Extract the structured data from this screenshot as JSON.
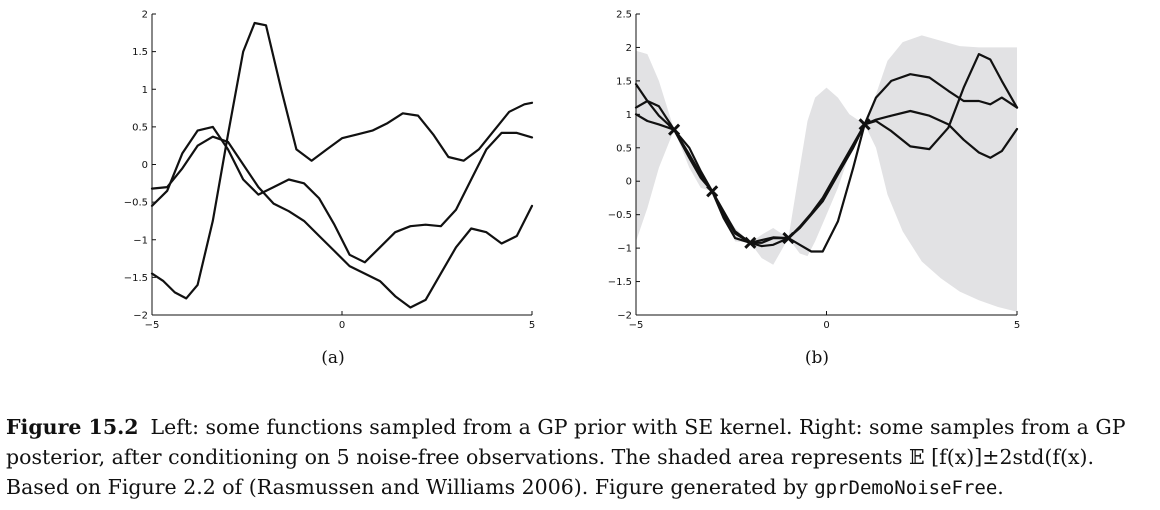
{
  "chart_data": [
    {
      "type": "line",
      "panel": "(a)",
      "xlim": [
        -5,
        5
      ],
      "ylim": [
        -2,
        2
      ],
      "x_ticks": [
        -5,
        0,
        5
      ],
      "y_ticks": [
        -2,
        -1.5,
        -1,
        -0.5,
        0,
        0.5,
        1,
        1.5,
        2
      ],
      "x_tick_labels": [
        "−5",
        "0",
        "5"
      ],
      "y_tick_labels": [
        "−2",
        "−1.5",
        "−1",
        "−0.5",
        "0",
        "0.5",
        "1",
        "1.5",
        "2"
      ],
      "grid": false,
      "series": [
        {
          "x": [
            -5,
            -4.7,
            -4.4,
            -4.1,
            -3.8,
            -3.4,
            -3,
            -2.6,
            -2.3,
            -2,
            -1.6,
            -1.2,
            -0.8,
            -0.4,
            0,
            0.4,
            0.8,
            1.2,
            1.6,
            2,
            2.4,
            2.8,
            3.2,
            3.6,
            4,
            4.4,
            4.8,
            5
          ],
          "y": [
            -1.45,
            -1.55,
            -1.7,
            -1.78,
            -1.6,
            -0.75,
            0.4,
            1.5,
            1.88,
            1.85,
            1.0,
            0.2,
            0.05,
            0.2,
            0.35,
            0.4,
            0.45,
            0.55,
            0.68,
            0.65,
            0.4,
            0.1,
            0.05,
            0.2,
            0.45,
            0.7,
            0.8,
            0.82
          ]
        },
        {
          "x": [
            -5,
            -4.6,
            -4.2,
            -3.8,
            -3.4,
            -3,
            -2.6,
            -2.2,
            -1.8,
            -1.4,
            -1,
            -0.6,
            -0.2,
            0.2,
            0.6,
            1,
            1.4,
            1.8,
            2.2,
            2.6,
            3,
            3.4,
            3.8,
            4.2,
            4.6,
            5
          ],
          "y": [
            -0.55,
            -0.35,
            0.15,
            0.45,
            0.5,
            0.2,
            -0.2,
            -0.4,
            -0.3,
            -0.2,
            -0.25,
            -0.45,
            -0.8,
            -1.2,
            -1.3,
            -1.1,
            -0.9,
            -0.82,
            -0.8,
            -0.82,
            -0.6,
            -0.2,
            0.2,
            0.42,
            0.42,
            0.36
          ]
        },
        {
          "x": [
            -5,
            -4.6,
            -4.2,
            -3.8,
            -3.4,
            -3,
            -2.6,
            -2.2,
            -1.8,
            -1.4,
            -1,
            -0.6,
            -0.2,
            0.2,
            0.6,
            1,
            1.4,
            1.8,
            2.2,
            2.6,
            3,
            3.4,
            3.8,
            4.2,
            4.6,
            5
          ],
          "y": [
            -0.32,
            -0.3,
            -0.05,
            0.25,
            0.37,
            0.3,
            0.0,
            -0.3,
            -0.52,
            -0.62,
            -0.75,
            -0.95,
            -1.15,
            -1.35,
            -1.45,
            -1.55,
            -1.75,
            -1.9,
            -1.8,
            -1.45,
            -1.1,
            -0.85,
            -0.9,
            -1.05,
            -0.95,
            -0.55
          ]
        }
      ]
    },
    {
      "type": "line",
      "panel": "(b)",
      "xlim": [
        -5,
        5
      ],
      "ylim": [
        -2,
        2.5
      ],
      "x_ticks": [
        -5,
        0,
        5
      ],
      "y_ticks": [
        -2,
        -1.5,
        -1,
        -0.5,
        0,
        0.5,
        1,
        1.5,
        2,
        2.5
      ],
      "x_tick_labels": [
        "−5",
        "0",
        "5"
      ],
      "y_tick_labels": [
        "−2",
        "−1.5",
        "−1",
        "−0.5",
        "0",
        "0.5",
        "1",
        "1.5",
        "2",
        "2.5"
      ],
      "grid": false,
      "observations": {
        "x": [
          -4,
          -3,
          -2,
          -1,
          1
        ],
        "y": [
          0.77,
          -0.15,
          -0.92,
          -0.85,
          0.85
        ]
      },
      "band": {
        "x": [
          -5,
          -4.7,
          -4.4,
          -4,
          -3.6,
          -3.3,
          -3,
          -2.7,
          -2.4,
          -2,
          -1.7,
          -1.4,
          -1,
          -0.7,
          -0.5,
          -0.3,
          0,
          0.3,
          0.6,
          1,
          1.3,
          1.6,
          2,
          2.5,
          3,
          3.5,
          4,
          4.5,
          5
        ],
        "upper": [
          1.95,
          1.9,
          1.5,
          0.77,
          0.45,
          0.15,
          -0.15,
          -0.45,
          -0.7,
          -0.92,
          -0.8,
          -0.7,
          -0.85,
          0.2,
          0.9,
          1.25,
          1.4,
          1.25,
          1.0,
          0.85,
          1.3,
          1.8,
          2.08,
          2.18,
          2.1,
          2.02,
          2.0,
          2.0,
          2.0
        ],
        "lower": [
          -0.9,
          -0.4,
          0.2,
          0.77,
          0.2,
          -0.1,
          -0.15,
          -0.45,
          -0.9,
          -0.92,
          -1.15,
          -1.25,
          -0.85,
          -1.08,
          -1.12,
          -0.9,
          -0.5,
          -0.1,
          0.4,
          0.85,
          0.5,
          -0.2,
          -0.75,
          -1.2,
          -1.45,
          -1.65,
          -1.78,
          -1.88,
          -1.95
        ]
      },
      "series": [
        {
          "x": [
            -5,
            -4.7,
            -4.4,
            -4,
            -3.6,
            -3.3,
            -3,
            -2.7,
            -2.4,
            -2,
            -1.7,
            -1.4,
            -1,
            -0.7,
            -0.4,
            -0.1,
            0.3,
            0.7,
            1,
            1.3,
            1.7,
            2.2,
            2.7,
            3.2,
            3.6,
            4,
            4.3,
            4.6,
            5
          ],
          "y": [
            1.45,
            1.2,
            0.98,
            0.77,
            0.4,
            0.1,
            -0.15,
            -0.5,
            -0.78,
            -0.92,
            -0.97,
            -0.95,
            -0.85,
            -0.68,
            -0.48,
            -0.25,
            0.15,
            0.55,
            0.85,
            1.25,
            1.5,
            1.6,
            1.55,
            1.35,
            1.2,
            1.2,
            1.15,
            1.25,
            1.1
          ]
        },
        {
          "x": [
            -5,
            -4.7,
            -4.4,
            -4,
            -3.6,
            -3.3,
            -3,
            -2.7,
            -2.4,
            -2,
            -1.7,
            -1.4,
            -1,
            -0.7,
            -0.4,
            -0.1,
            0.3,
            0.7,
            1,
            1.3,
            1.7,
            2.2,
            2.7,
            3.2,
            3.6,
            4,
            4.3,
            4.6,
            5
          ],
          "y": [
            1.1,
            1.2,
            1.12,
            0.77,
            0.35,
            0.05,
            -0.15,
            -0.45,
            -0.75,
            -0.92,
            -0.92,
            -0.85,
            -0.85,
            -0.95,
            -1.05,
            -1.05,
            -0.6,
            0.2,
            0.85,
            0.9,
            0.75,
            0.52,
            0.48,
            0.8,
            1.4,
            1.9,
            1.82,
            1.5,
            1.1
          ]
        },
        {
          "x": [
            -5,
            -4.7,
            -4.4,
            -4,
            -3.6,
            -3.3,
            -3,
            -2.7,
            -2.4,
            -2,
            -1.7,
            -1.4,
            -1,
            -0.7,
            -0.4,
            -0.1,
            0.3,
            0.7,
            1,
            1.3,
            1.7,
            2.2,
            2.7,
            3.2,
            3.6,
            4,
            4.3,
            4.6,
            5
          ],
          "y": [
            1.0,
            0.9,
            0.85,
            0.77,
            0.5,
            0.15,
            -0.15,
            -0.55,
            -0.85,
            -0.92,
            -0.88,
            -0.84,
            -0.85,
            -0.7,
            -0.5,
            -0.3,
            0.1,
            0.5,
            0.85,
            0.92,
            0.98,
            1.05,
            0.98,
            0.85,
            0.62,
            0.43,
            0.35,
            0.45,
            0.78
          ]
        }
      ]
    }
  ],
  "caption": {
    "label": "Figure 15.2",
    "line1": "Left: some functions sampled from a GP prior with SE kernel. Right: some samples from a GP",
    "line2": "posterior, after conditioning on 5 noise-free observations. The shaded area represents 𝔼 [f(x)]±2std(f(x).",
    "line3_prefix": "Based on Figure 2.2 of (Rasmussen and Williams 2006). Figure generated by ",
    "code": "gprDemoNoiseFree",
    "line3_suffix": "."
  }
}
